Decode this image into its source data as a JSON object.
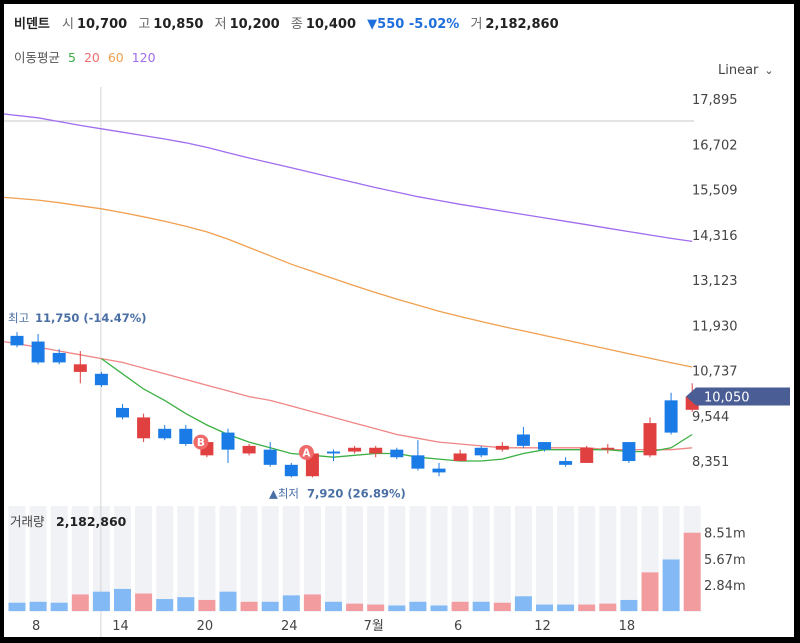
{
  "header": {
    "name": "비덴트",
    "open_label": "시",
    "open": "10,700",
    "high_label": "고",
    "high": "10,850",
    "low_label": "저",
    "low": "10,200",
    "close_label": "종",
    "close": "10,400",
    "change": "▼550 -5.02%",
    "volume_label": "거",
    "volume": "2,182,860"
  },
  "ma_legend": {
    "label": "이동평균",
    "items": [
      {
        "period": "5",
        "color": "#3cb043"
      },
      {
        "period": "20",
        "color": "#f08080"
      },
      {
        "period": "60",
        "color": "#f0a050"
      },
      {
        "period": "120",
        "color": "#a06cf0"
      }
    ]
  },
  "scale_mode": "Linear",
  "colors": {
    "up": "#e04040",
    "down": "#1a7be6",
    "up_vol": "#f39ca0",
    "down_vol": "#83baf5",
    "price_tag": "#4a5d94"
  },
  "current_price": {
    "value": 10050,
    "label": "10,050"
  },
  "high_marker": {
    "prefix": "최고",
    "value": 11750,
    "label": "11,750 (-14.47%)"
  },
  "low_marker": {
    "prefix": "▲최저",
    "value": 7920,
    "label": "7,920 (26.89%)"
  },
  "event_markers": [
    {
      "label": "A",
      "index": 14
    },
    {
      "label": "B",
      "index": 9
    }
  ],
  "volume_panel": {
    "label": "거래량",
    "value": "2,182,860",
    "ticks": [
      "8.51m",
      "5.67m",
      "2.84m"
    ]
  },
  "chart_data": {
    "type": "candlestick",
    "y_ticks": [
      "17,895",
      "16,702",
      "15,509",
      "14,316",
      "13,123",
      "11,930",
      "10,737",
      "9,544",
      "8,351"
    ],
    "y_tick_values": [
      17895,
      16702,
      15509,
      14316,
      13123,
      11930,
      10737,
      9544,
      8351
    ],
    "x_ticks": [
      {
        "label": "8",
        "index": 1
      },
      {
        "label": "14",
        "index": 5
      },
      {
        "label": "20",
        "index": 9
      },
      {
        "label": "24",
        "index": 13
      },
      {
        "label": "7월",
        "index": 17
      },
      {
        "label": "6",
        "index": 21
      },
      {
        "label": "12",
        "index": 25
      },
      {
        "label": "18",
        "index": 29
      }
    ],
    "candles": [
      {
        "o": 11650,
        "h": 11750,
        "l": 11350,
        "c": 11400
      },
      {
        "o": 11500,
        "h": 11700,
        "l": 10900,
        "c": 10950
      },
      {
        "o": 11200,
        "h": 11300,
        "l": 10900,
        "c": 10950
      },
      {
        "o": 10700,
        "h": 11250,
        "l": 10400,
        "c": 10900
      },
      {
        "o": 10650,
        "h": 10700,
        "l": 10300,
        "c": 10350
      },
      {
        "o": 9750,
        "h": 9850,
        "l": 9450,
        "c": 9500
      },
      {
        "o": 8950,
        "h": 9600,
        "l": 8850,
        "c": 9500
      },
      {
        "o": 9200,
        "h": 9300,
        "l": 8900,
        "c": 8950
      },
      {
        "o": 9200,
        "h": 9300,
        "l": 8750,
        "c": 8800
      },
      {
        "o": 8500,
        "h": 8900,
        "l": 8450,
        "c": 8850
      },
      {
        "o": 9100,
        "h": 9200,
        "l": 8300,
        "c": 8650
      },
      {
        "o": 8550,
        "h": 8800,
        "l": 8500,
        "c": 8750
      },
      {
        "o": 8650,
        "h": 8850,
        "l": 8200,
        "c": 8250
      },
      {
        "o": 8250,
        "h": 8300,
        "l": 7920,
        "c": 7950
      },
      {
        "o": 7950,
        "h": 8600,
        "l": 7920,
        "c": 8550
      },
      {
        "o": 8600,
        "h": 8650,
        "l": 8350,
        "c": 8550
      },
      {
        "o": 8600,
        "h": 8750,
        "l": 8550,
        "c": 8700
      },
      {
        "o": 8550,
        "h": 8750,
        "l": 8450,
        "c": 8700
      },
      {
        "o": 8650,
        "h": 8700,
        "l": 8400,
        "c": 8450
      },
      {
        "o": 8500,
        "h": 8900,
        "l": 8100,
        "c": 8150
      },
      {
        "o": 8150,
        "h": 8300,
        "l": 7950,
        "c": 8050
      },
      {
        "o": 8350,
        "h": 8650,
        "l": 8350,
        "c": 8550
      },
      {
        "o": 8700,
        "h": 8750,
        "l": 8450,
        "c": 8500
      },
      {
        "o": 8650,
        "h": 8850,
        "l": 8600,
        "c": 8750
      },
      {
        "o": 9050,
        "h": 9250,
        "l": 8700,
        "c": 8750
      },
      {
        "o": 8850,
        "h": 8850,
        "l": 8600,
        "c": 8650
      },
      {
        "o": 8350,
        "h": 8450,
        "l": 8200,
        "c": 8250
      },
      {
        "o": 8300,
        "h": 8750,
        "l": 8300,
        "c": 8700
      },
      {
        "o": 8650,
        "h": 8800,
        "l": 8550,
        "c": 8700
      },
      {
        "o": 8850,
        "h": 8850,
        "l": 8300,
        "c": 8350
      },
      {
        "o": 8500,
        "h": 9500,
        "l": 8450,
        "c": 9350
      },
      {
        "o": 9950,
        "h": 10150,
        "l": 9050,
        "c": 9100
      },
      {
        "o": 9700,
        "h": 10400,
        "l": 9650,
        "c": 10050
      }
    ],
    "volume": [
      0.9,
      1.0,
      0.9,
      1.8,
      2.1,
      2.4,
      1.9,
      1.3,
      1.5,
      1.2,
      2.1,
      1.0,
      1.0,
      1.7,
      1.8,
      1.0,
      0.8,
      0.7,
      0.6,
      1.0,
      0.6,
      1.0,
      1.0,
      0.9,
      1.6,
      0.7,
      0.7,
      0.7,
      0.8,
      1.2,
      4.2,
      5.6,
      8.51
    ],
    "volume_unit": "m",
    "ma5": [
      null,
      null,
      null,
      null,
      11050,
      10650,
      10250,
      9950,
      9600,
      9300,
      9050,
      8850,
      8700,
      8550,
      8500,
      8450,
      8500,
      8550,
      8550,
      8450,
      8400,
      8350,
      8350,
      8400,
      8550,
      8650,
      8650,
      8650,
      8650,
      8600,
      8600,
      8700,
      9050
    ],
    "ma20": [
      11500,
      11350,
      11250,
      11150,
      11050,
      10950,
      10800,
      10650,
      10500,
      10350,
      10200,
      10050,
      9950,
      9800,
      9650,
      9500,
      9350,
      9200,
      9050,
      8950,
      8850,
      8800,
      8750,
      8700,
      8700,
      8700,
      8700,
      8700,
      8650,
      8650,
      8650,
      8650,
      8700
    ],
    "ma60": [
      15300,
      15230,
      15160,
      15080,
      15000,
      14900,
      14790,
      14670,
      14540,
      14390,
      14200,
      13980,
      13760,
      13540,
      13350,
      13160,
      12970,
      12790,
      12620,
      12460,
      12300,
      12160,
      12030,
      11900,
      11780,
      11660,
      11540,
      11420,
      11300,
      11180,
      11060,
      10940,
      10830
    ],
    "ma120": [
      17500,
      17400,
      17300,
      17200,
      17110,
      17020,
      16930,
      16840,
      16740,
      16620,
      16480,
      16340,
      16210,
      16080,
      15950,
      15820,
      15690,
      15560,
      15440,
      15320,
      15220,
      15120,
      15030,
      14940,
      14850,
      14760,
      14670,
      14580,
      14490,
      14400,
      14310,
      14220,
      14140
    ]
  }
}
